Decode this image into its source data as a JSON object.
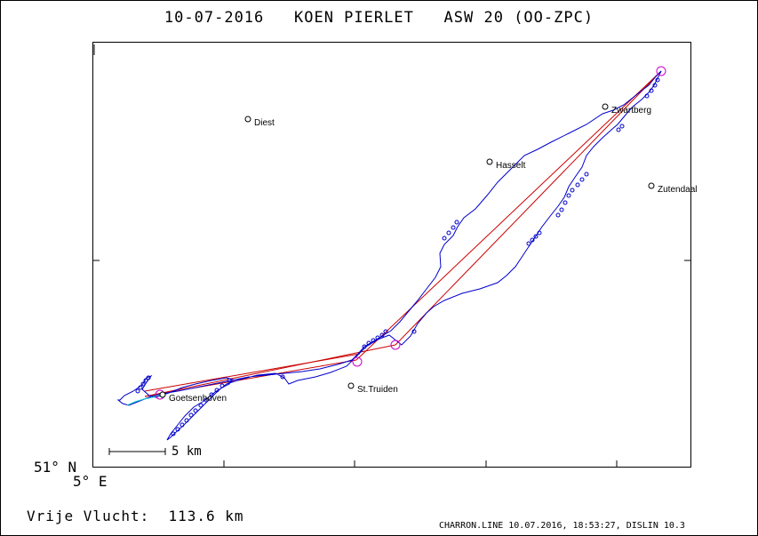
{
  "title": {
    "date": "10-07-2016",
    "pilot": "KOEN PIERLET",
    "glider": "ASW 20 (OO-ZPC)"
  },
  "axes": {
    "lat_label": "51° N",
    "lon_label": "5° E"
  },
  "scale": {
    "label": "5 km"
  },
  "distance": {
    "label": "Vrije Vlucht:",
    "value": "113.6 km"
  },
  "footer": "CHARRON.LINE 10.07.2016, 18:53:27, DISLIN 10.3",
  "towns": [
    {
      "name": "Diest"
    },
    {
      "name": "Hasselt"
    },
    {
      "name": "Zwartberg"
    },
    {
      "name": "Zutendaal"
    },
    {
      "name": "St.Truiden"
    },
    {
      "name": "Goetsenhoven"
    }
  ],
  "colors": {
    "track": "#0000cc",
    "track_start": "#00cccc",
    "task_line": "#cc0000",
    "turnpoint": "#cc00cc"
  }
}
